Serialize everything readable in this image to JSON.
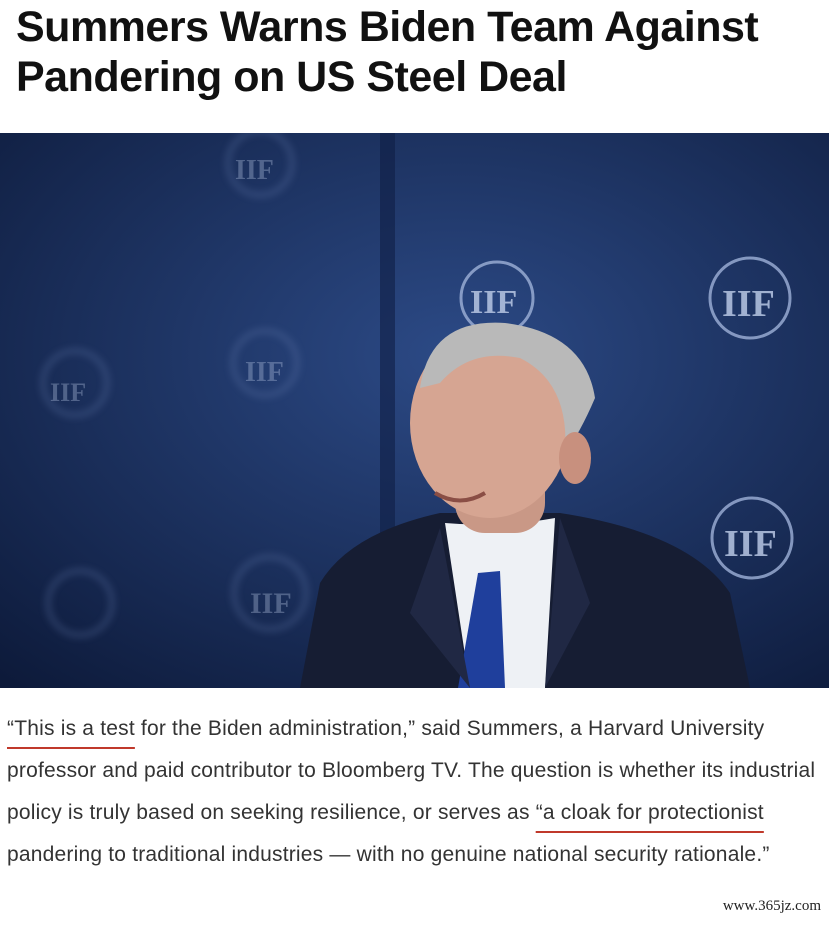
{
  "headline": "Summers Warns Biden Team Against Pandering on US Steel Deal",
  "photo": {
    "logo_text": "IIF"
  },
  "paragraph": [
    {
      "text": "“This is a test",
      "underlined": true
    },
    {
      "text": " for the Biden administration,” said Summers, a Harvard University professor and paid contributor to Bloomberg TV. The question is whether its industrial policy is truly based on seeking resilience, or serves as ",
      "underlined": false
    },
    {
      "text": "“a cloak for protectionist",
      "underlined": true
    },
    {
      "text": " pandering to traditional industries — with no genuine national security rationale.”",
      "underlined": false
    }
  ],
  "watermark": "www.365jz.com"
}
